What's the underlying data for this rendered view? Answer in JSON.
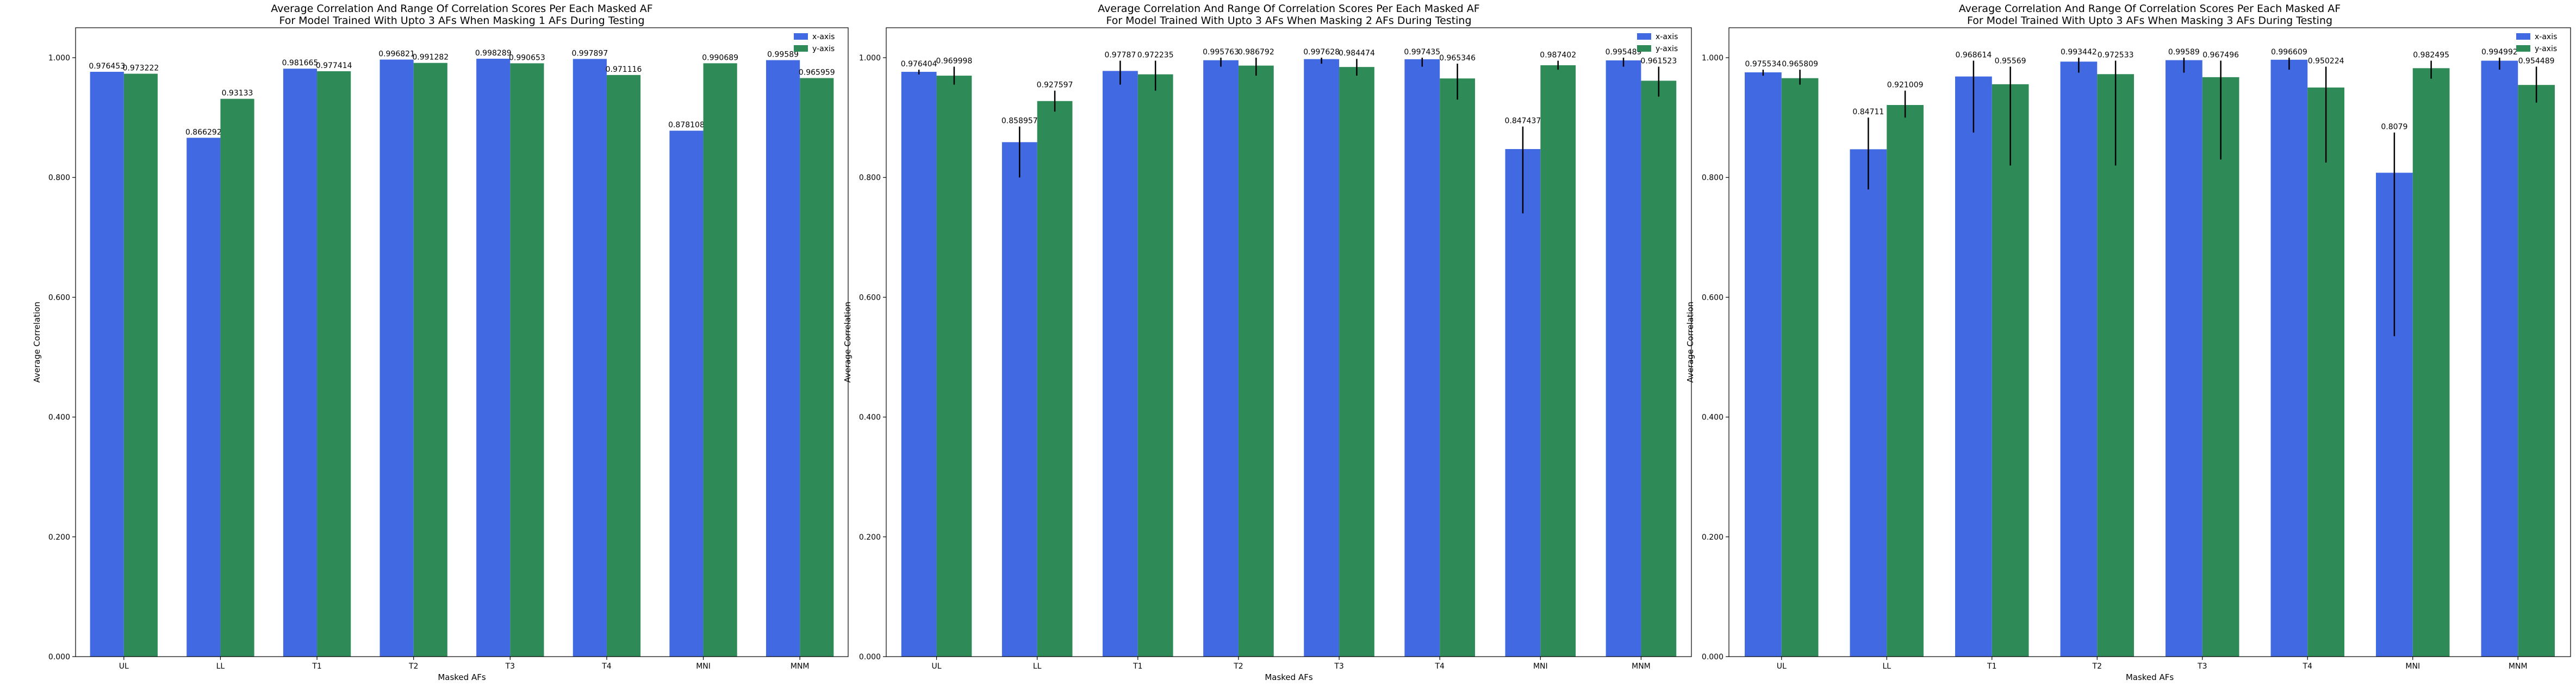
{
  "colors": {
    "x_axis": "#4169e1",
    "y_axis": "#2e8b57",
    "error_bar": "#000000",
    "axis": "#000000"
  },
  "chart_data": [
    {
      "type": "bar",
      "title": "Average Correlation And Range Of Correlation Scores Per Each Masked AF",
      "subtitle": "For Model Trained With Upto 3 AFs When Masking 1 AFs During Testing",
      "xlabel": "Masked AFs",
      "ylabel": "Average Correlation",
      "ylim": [
        0,
        1.05
      ],
      "yticks": [
        "0.000",
        "0.200",
        "0.400",
        "0.600",
        "0.800",
        "1.000"
      ],
      "legend_position": "top-right",
      "categories": [
        "UL",
        "LL",
        "T1",
        "T2",
        "T3",
        "T4",
        "MNI",
        "MNM"
      ],
      "series": [
        {
          "name": "x-axis",
          "values": [
            0.976453,
            0.866292,
            0.981665,
            0.996821,
            0.998289,
            0.997897,
            0.878108,
            0.99589
          ],
          "labels": [
            "0.976453",
            "0.866292",
            "0.981665",
            "0.996821",
            "0.998289",
            "0.997897",
            "0.878108",
            "0.99589"
          ],
          "err_low": [
            null,
            null,
            null,
            null,
            null,
            null,
            null,
            null
          ],
          "err_high": [
            null,
            null,
            null,
            null,
            null,
            null,
            null,
            null
          ]
        },
        {
          "name": "y-axis",
          "values": [
            0.973222,
            0.93133,
            0.977414,
            0.991282,
            0.990653,
            0.971116,
            0.990689,
            0.965959
          ],
          "labels": [
            "0.973222",
            "0.93133",
            "0.977414",
            "0.991282",
            "0.990653",
            "0.971116",
            "0.990689",
            "0.965959"
          ],
          "err_low": [
            null,
            null,
            null,
            null,
            null,
            null,
            null,
            null
          ],
          "err_high": [
            null,
            null,
            null,
            null,
            null,
            null,
            null,
            null
          ]
        }
      ]
    },
    {
      "type": "bar",
      "title": "Average Correlation And Range Of Correlation Scores Per Each Masked AF",
      "subtitle": "For Model Trained With Upto 3 AFs When Masking 2 AFs During Testing",
      "xlabel": "Masked AFs",
      "ylabel": "Average Correlation",
      "ylim": [
        0,
        1.05
      ],
      "yticks": [
        "0.000",
        "0.200",
        "0.400",
        "0.600",
        "0.800",
        "1.000"
      ],
      "legend_position": "top-right",
      "categories": [
        "UL",
        "LL",
        "T1",
        "T2",
        "T3",
        "T4",
        "MNI",
        "MNM"
      ],
      "series": [
        {
          "name": "x-axis",
          "values": [
            0.976404,
            0.858957,
            0.97787,
            0.995763,
            0.997628,
            0.997435,
            0.847437,
            0.995489
          ],
          "labels": [
            "0.976404",
            "0.858957",
            "0.97787",
            "0.995763",
            "0.997628",
            "0.997435",
            "0.847437",
            "0.995489"
          ],
          "err_low": [
            0.972,
            0.8,
            0.955,
            0.985,
            0.99,
            0.985,
            0.74,
            0.985
          ],
          "err_high": [
            0.98,
            0.885,
            0.995,
            1.0,
            1.0,
            1.0,
            0.885,
            1.0
          ]
        },
        {
          "name": "y-axis",
          "values": [
            0.969998,
            0.927597,
            0.972235,
            0.986792,
            0.984474,
            0.965346,
            0.987402,
            0.961523
          ],
          "labels": [
            "0.969998",
            "0.927597",
            "0.972235",
            "0.986792",
            "0.984474",
            "0.965346",
            "0.987402",
            "0.961523"
          ],
          "err_low": [
            0.955,
            0.91,
            0.945,
            0.97,
            0.97,
            0.93,
            0.98,
            0.935
          ],
          "err_high": [
            0.985,
            0.945,
            0.995,
            1.0,
            0.998,
            0.99,
            0.995,
            0.985
          ]
        }
      ]
    },
    {
      "type": "bar",
      "title": "Average Correlation And Range Of Correlation Scores Per Each Masked AF",
      "subtitle": "For Model Trained With Upto 3 AFs When Masking 3 AFs During Testing",
      "xlabel": "Masked AFs",
      "ylabel": "Average Correlation",
      "ylim": [
        0,
        1.05
      ],
      "yticks": [
        "0.000",
        "0.200",
        "0.400",
        "0.600",
        "0.800",
        "1.000"
      ],
      "legend_position": "top-right",
      "categories": [
        "UL",
        "LL",
        "T1",
        "T2",
        "T3",
        "T4",
        "MNI",
        "MNM"
      ],
      "series": [
        {
          "name": "x-axis",
          "values": [
            0.975534,
            0.84711,
            0.968614,
            0.993442,
            0.99589,
            0.996609,
            0.8079,
            0.994992
          ],
          "labels": [
            "0.975534",
            "0.84711",
            "0.968614",
            "0.993442",
            "0.99589",
            "0.996609",
            "0.8079",
            "0.994992"
          ],
          "err_low": [
            0.97,
            0.78,
            0.875,
            0.975,
            0.975,
            0.98,
            0.535,
            0.98
          ],
          "err_high": [
            0.98,
            0.9,
            0.995,
            1.0,
            1.0,
            1.0,
            0.875,
            1.0
          ]
        },
        {
          "name": "y-axis",
          "values": [
            0.965809,
            0.921009,
            0.95569,
            0.972533,
            0.967496,
            0.950224,
            0.982495,
            0.954489
          ],
          "labels": [
            "0.965809",
            "0.921009",
            "0.95569",
            "0.972533",
            "0.967496",
            "0.950224",
            "0.982495",
            "0.954489"
          ],
          "err_low": [
            0.955,
            0.9,
            0.82,
            0.82,
            0.83,
            0.825,
            0.965,
            0.925
          ],
          "err_high": [
            0.98,
            0.945,
            0.985,
            0.995,
            0.995,
            0.985,
            0.995,
            0.985
          ]
        }
      ]
    }
  ]
}
